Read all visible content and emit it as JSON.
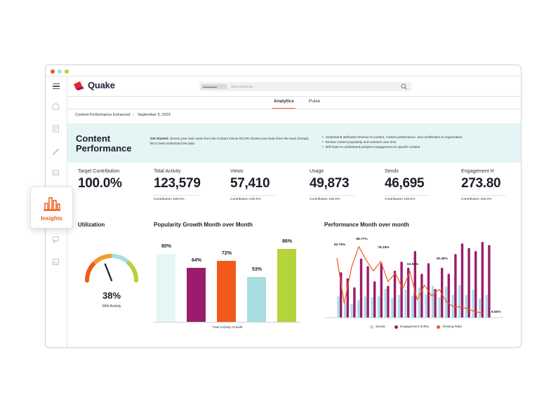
{
  "app": {
    "name": "Quake",
    "search_placeholder": "Start searching...",
    "search_chip": "▬▬▬▬▬"
  },
  "tabs": [
    {
      "label": "Analytics"
    },
    {
      "label": "Pulse"
    }
  ],
  "breadcrumb": {
    "report": "Content Performance Enhanced",
    "date": "September 5, 2023"
  },
  "banner": {
    "title_line1": "Content",
    "title_line2": "Performance",
    "get_started_label": "Get Started:",
    "get_started_text": "choose your user name from the Content Owner list OR choose your team from the team (Group) list to best understand the data.",
    "bullets": [
      "Understand attributed revenue to content, content performance, and contribution to organization",
      "Review content popularity and outreach over time",
      "Drill down to understand prospect engagement on specific content"
    ]
  },
  "kpis": [
    {
      "label": "Target Contribution",
      "value": "100.0%",
      "sub": ""
    },
    {
      "label": "Total Activity",
      "value": "123,579",
      "sub": "Contribution 100.0%"
    },
    {
      "label": "Views",
      "value": "57,410",
      "sub": "Contribution 100.0%"
    },
    {
      "label": "Usage",
      "value": "49,873",
      "sub": "Contribution 100.0%"
    },
    {
      "label": "Sends",
      "value": "46,695",
      "sub": "Contribution 100.0%"
    },
    {
      "label": "Engagement H",
      "value": "273.80",
      "sub": "Contribution 100.0%"
    }
  ],
  "insights_badge": {
    "label": "Insights",
    "icon": "bar-chart-icon"
  },
  "utilization": {
    "title": "Utilization",
    "value": "38%",
    "caption": "With Activity",
    "fraction": 0.38
  },
  "colors": {
    "accent": "#f05a1a",
    "purple": "#9b1c6e",
    "teal": "#a9dde2",
    "lime": "#b5d33a",
    "pale": "#e6f5f6",
    "logo_red": "#e8242c",
    "logo_purple": "#8a1a5c"
  },
  "chart_data": [
    {
      "type": "bar",
      "title": "Popularity Growth Month over Month",
      "xlabel": "Total Activity Growth",
      "values": [
        80,
        64,
        72,
        53,
        86
      ],
      "labels": [
        "80%",
        "64%",
        "72%",
        "53%",
        "86%"
      ],
      "ylim": [
        0,
        100
      ]
    },
    {
      "type": "bar+line",
      "title": "Performance Month over month",
      "series": [
        {
          "name": "Sends",
          "values": [
            28,
            20,
            18,
            23,
            28,
            27,
            28,
            38,
            26,
            30,
            37,
            29,
            40,
            31,
            42,
            27,
            41,
            30,
            43,
            30,
            37,
            25,
            30
          ]
        },
        {
          "name": "Engagement (HRs)",
          "values": [
            60,
            52,
            40,
            78,
            68,
            48,
            72,
            42,
            62,
            74,
            66,
            88,
            58,
            72,
            38,
            66,
            58,
            84,
            98,
            92,
            88,
            100,
            96
          ]
        },
        {
          "name": "Viewing Rate",
          "values": [
            82.76,
            20,
            70,
            98.77,
            80,
            65,
            78.18,
            50,
            62,
            40,
            63.92,
            25,
            45,
            30,
            39.38,
            22,
            15,
            15,
            12,
            8,
            6.6
          ]
        }
      ],
      "point_labels": [
        "82.76%",
        "98.77%",
        "78.18%",
        "63.92%",
        "39.38%",
        "6.60%"
      ]
    }
  ]
}
